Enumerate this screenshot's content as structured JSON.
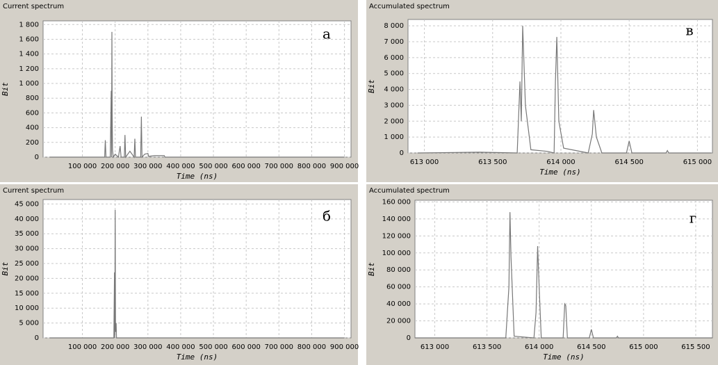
{
  "chart_data": [
    {
      "type": "line",
      "title": "Current spectrum",
      "annotation": "а",
      "xlabel": "Time (ns)",
      "ylabel": "Bit",
      "color": "#777777",
      "grid": true,
      "xlim": [
        -20000,
        920000
      ],
      "ylim": [
        0,
        1850
      ],
      "xticks": [
        {
          "value": 100000,
          "label": "100 000"
        },
        {
          "value": 200000,
          "label": "200 000"
        },
        {
          "value": 300000,
          "label": "300 000"
        },
        {
          "value": 400000,
          "label": "400 000"
        },
        {
          "value": 500000,
          "label": "500 000"
        },
        {
          "value": 600000,
          "label": "600 000"
        },
        {
          "value": 700000,
          "label": "700 000"
        },
        {
          "value": 800000,
          "label": "800 000"
        },
        {
          "value": 900000,
          "label": "900 000"
        }
      ],
      "yticks": [
        0,
        200,
        400,
        600,
        800,
        {
          "value": 1000,
          "label": "1 000"
        },
        {
          "value": 1200,
          "label": "1 200"
        },
        {
          "value": 1400,
          "label": "1 400"
        },
        {
          "value": 1600,
          "label": "1 600"
        },
        {
          "value": 1800,
          "label": "1 800"
        }
      ],
      "x": [
        0,
        160000,
        168000,
        170000,
        172000,
        185000,
        188000,
        189000,
        190000,
        191000,
        192000,
        194000,
        200000,
        210000,
        215000,
        218000,
        228000,
        230000,
        232000,
        245000,
        258000,
        260000,
        262000,
        275000,
        278000,
        280000,
        282000,
        290000,
        300000,
        302000,
        320000,
        350000,
        352000,
        400000,
        900000
      ],
      "values": [
        0,
        0,
        0,
        230,
        0,
        0,
        900,
        0,
        1700,
        600,
        100,
        0,
        40,
        0,
        150,
        0,
        0,
        300,
        0,
        80,
        0,
        250,
        0,
        0,
        0,
        550,
        0,
        40,
        50,
        10,
        20,
        20,
        0,
        0,
        0
      ]
    },
    {
      "type": "line",
      "title": "Accumulated spectrum",
      "annotation": "в",
      "xlabel": "Time (ns)",
      "ylabel": "Bit",
      "color": "#777777",
      "grid": true,
      "xlim": [
        612880,
        615110
      ],
      "ylim": [
        0,
        8400
      ],
      "xticks": [
        {
          "value": 613000,
          "label": "613 000"
        },
        {
          "value": 613500,
          "label": "613 500"
        },
        {
          "value": 614000,
          "label": "614 000"
        },
        {
          "value": 614500,
          "label": "614 500"
        },
        {
          "value": 615000,
          "label": "615 000"
        }
      ],
      "yticks": [
        0,
        {
          "value": 1000,
          "label": "1 000"
        },
        {
          "value": 2000,
          "label": "2 000"
        },
        {
          "value": 3000,
          "label": "3 000"
        },
        {
          "value": 4000,
          "label": "4 000"
        },
        {
          "value": 5000,
          "label": "5 000"
        },
        {
          "value": 6000,
          "label": "6 000"
        },
        {
          "value": 7000,
          "label": "7 000"
        },
        {
          "value": 8000,
          "label": "8 000"
        }
      ],
      "x": [
        612950,
        613400,
        613680,
        613700,
        613710,
        613720,
        613740,
        613780,
        613900,
        613950,
        613960,
        613970,
        613985,
        614020,
        614200,
        614230,
        614240,
        614260,
        614300,
        614480,
        614500,
        614520,
        614770,
        614780,
        614790,
        615100
      ],
      "values": [
        0,
        50,
        0,
        4500,
        2000,
        8000,
        3000,
        200,
        100,
        0,
        4500,
        7300,
        2000,
        300,
        0,
        1200,
        2700,
        1000,
        0,
        0,
        750,
        0,
        0,
        150,
        0,
        0
      ]
    },
    {
      "type": "line",
      "title": "Current spectrum",
      "annotation": "б",
      "xlabel": "Time (ns)",
      "ylabel": "Bit",
      "color": "#777777",
      "grid": true,
      "xlim": [
        -20000,
        920000
      ],
      "ylim": [
        0,
        46500
      ],
      "xticks": [
        {
          "value": 100000,
          "label": "100 000"
        },
        {
          "value": 200000,
          "label": "200 000"
        },
        {
          "value": 300000,
          "label": "300 000"
        },
        {
          "value": 400000,
          "label": "400 000"
        },
        {
          "value": 500000,
          "label": "500 000"
        },
        {
          "value": 600000,
          "label": "600 000"
        },
        {
          "value": 700000,
          "label": "700 000"
        },
        {
          "value": 800000,
          "label": "800 000"
        },
        {
          "value": 900000,
          "label": "900 000"
        }
      ],
      "yticks": [
        0,
        {
          "value": 5000,
          "label": "5 000"
        },
        {
          "value": 10000,
          "label": "10 000"
        },
        {
          "value": 15000,
          "label": "15 000"
        },
        {
          "value": 20000,
          "label": "20 000"
        },
        {
          "value": 25000,
          "label": "25 000"
        },
        {
          "value": 30000,
          "label": "30 000"
        },
        {
          "value": 35000,
          "label": "35 000"
        },
        {
          "value": 40000,
          "label": "40 000"
        },
        {
          "value": 45000,
          "label": "45 000"
        }
      ],
      "x": [
        0,
        190000,
        196000,
        198000,
        199000,
        200000,
        201000,
        203000,
        204000,
        210000,
        900000
      ],
      "values": [
        0,
        0,
        0,
        22000,
        0,
        43000,
        2000,
        5000,
        0,
        0,
        0
      ]
    },
    {
      "type": "line",
      "title": "Accumulated spectrum",
      "annotation": "г",
      "xlabel": "Time (ns)",
      "ylabel": "Bit",
      "color": "#777777",
      "grid": true,
      "xlim": [
        612810,
        615660
      ],
      "ylim": [
        0,
        162000
      ],
      "xticks": [
        {
          "value": 613000,
          "label": "613 000"
        },
        {
          "value": 613500,
          "label": "613 500"
        },
        {
          "value": 614000,
          "label": "614 000"
        },
        {
          "value": 614500,
          "label": "614 500"
        },
        {
          "value": 615000,
          "label": "615 000"
        },
        {
          "value": 615500,
          "label": "615 500"
        }
      ],
      "yticks": [
        0,
        {
          "value": 20000,
          "label": "20 000"
        },
        {
          "value": 40000,
          "label": "40 000"
        },
        {
          "value": 60000,
          "label": "60 000"
        },
        {
          "value": 80000,
          "label": "80 000"
        },
        {
          "value": 100000,
          "label": "100 000"
        },
        {
          "value": 120000,
          "label": "120 000"
        },
        {
          "value": 140000,
          "label": "140 000"
        },
        {
          "value": 160000,
          "label": "160 000"
        }
      ],
      "x": [
        612810,
        613680,
        613710,
        613720,
        613730,
        613760,
        613950,
        613970,
        613985,
        614000,
        614020,
        614230,
        614245,
        614255,
        614270,
        614480,
        614500,
        614520,
        614740,
        614750,
        614760,
        615660
      ],
      "values": [
        0,
        0,
        60000,
        148000,
        95000,
        2000,
        0,
        30000,
        108000,
        60000,
        0,
        0,
        40000,
        38000,
        0,
        0,
        10000,
        0,
        0,
        2000,
        0,
        0
      ]
    }
  ]
}
